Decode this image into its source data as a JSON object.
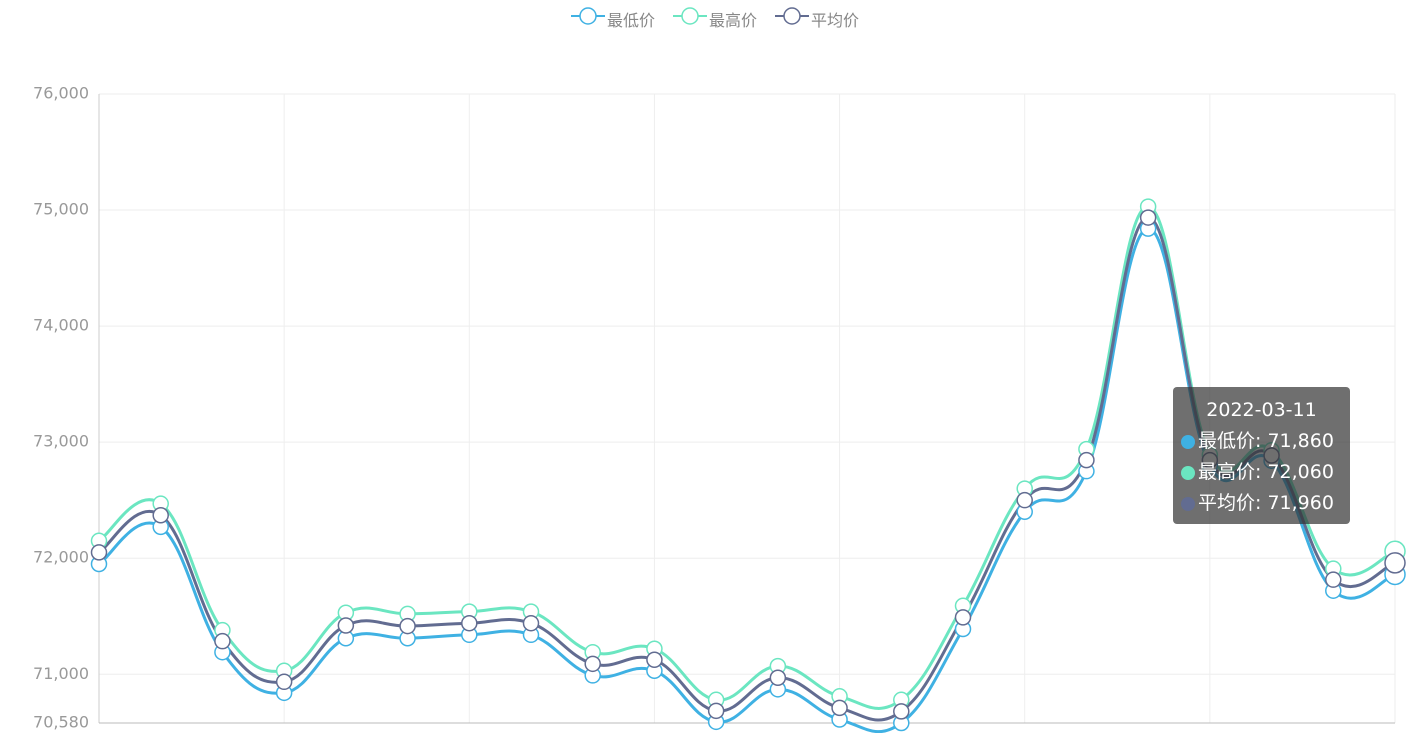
{
  "chart_data": {
    "type": "line",
    "categories": [
      null,
      null,
      null,
      null,
      null,
      null,
      null,
      null,
      null,
      null,
      null,
      null,
      null,
      null,
      null,
      null,
      null,
      null,
      null,
      null,
      null,
      "2022-03-11"
    ],
    "series": [
      {
        "name": "最低价",
        "color": "#3fb1e3",
        "values": [
          71950,
          72270,
          71190,
          70840,
          71310,
          71310,
          71340,
          71340,
          70990,
          71030,
          70590,
          70870,
          70610,
          70580,
          71390,
          72400,
          72750,
          74840,
          72800,
          72840,
          71720,
          71860
        ]
      },
      {
        "name": "最高价",
        "color": "#6be6c1",
        "values": [
          72150,
          72470,
          71380,
          71030,
          71530,
          71520,
          71540,
          71540,
          71190,
          71220,
          70780,
          71070,
          70810,
          70780,
          71590,
          72600,
          72940,
          75030,
          72890,
          72930,
          71910,
          72060
        ]
      },
      {
        "name": "平均价",
        "color": "#626c91",
        "values": [
          72050,
          72370,
          71285,
          70935,
          71420,
          71415,
          71440,
          71440,
          71090,
          71125,
          70685,
          70970,
          70710,
          70680,
          71490,
          72500,
          72845,
          74935,
          72845,
          72885,
          71815,
          71960
        ]
      }
    ],
    "ylim": [
      70580,
      76000
    ],
    "yticks": [
      {
        "value": 70580,
        "label": "70,580"
      },
      {
        "value": 71000,
        "label": "71,000"
      },
      {
        "value": 72000,
        "label": "72,000"
      },
      {
        "value": 73000,
        "label": "73,000"
      },
      {
        "value": 74000,
        "label": "74,000"
      },
      {
        "value": 75000,
        "label": "75,000"
      },
      {
        "value": 76000,
        "label": "76,000"
      }
    ],
    "grid": true,
    "smooth": true,
    "legend": "top",
    "tooltip": {
      "index": 21,
      "value_labels": [
        "71,860",
        "72,060",
        "71,960"
      ]
    }
  }
}
